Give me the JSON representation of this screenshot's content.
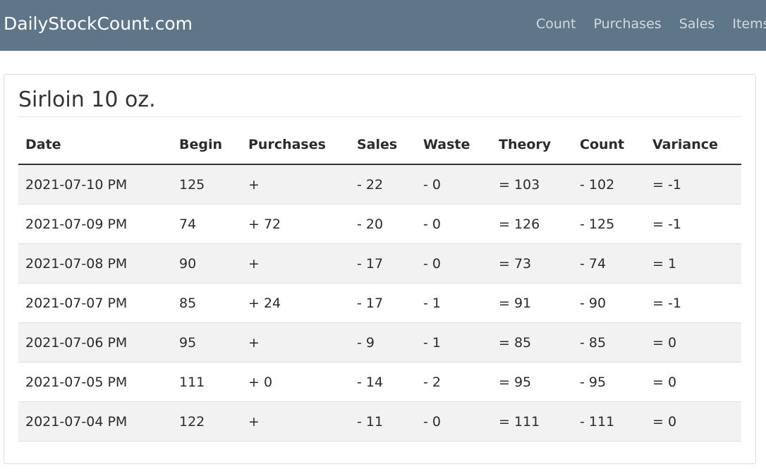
{
  "nav": {
    "brand": "DailyStockCount.com",
    "links": [
      "Count",
      "Purchases",
      "Sales",
      "Items"
    ]
  },
  "item": {
    "title": "Sirloin 10 oz."
  },
  "table": {
    "headers": [
      "Date",
      "Begin",
      "Purchases",
      "Sales",
      "Waste",
      "Theory",
      "Count",
      "Variance"
    ],
    "rows": [
      [
        "2021-07-10 PM",
        "125",
        "+",
        "- 22",
        "- 0",
        "= 103",
        "- 102",
        "= -1"
      ],
      [
        "2021-07-09 PM",
        "74",
        "+ 72",
        "- 20",
        "- 0",
        "= 126",
        "- 125",
        "= -1"
      ],
      [
        "2021-07-08 PM",
        "90",
        "+",
        "- 17",
        "- 0",
        "= 73",
        "- 74",
        "= 1"
      ],
      [
        "2021-07-07 PM",
        "85",
        "+ 24",
        "- 17",
        "- 1",
        "= 91",
        "- 90",
        "= -1"
      ],
      [
        "2021-07-06 PM",
        "95",
        "+",
        "- 9",
        "- 1",
        "= 85",
        "- 85",
        "= 0"
      ],
      [
        "2021-07-05 PM",
        "111",
        "+ 0",
        "- 14",
        "- 2",
        "= 95",
        "- 95",
        "= 0"
      ],
      [
        "2021-07-04 PM",
        "122",
        "+",
        "- 11",
        "- 0",
        "= 111",
        "- 111",
        "= 0"
      ]
    ]
  },
  "colors": {
    "navbar": "#5f7689",
    "stripe": "#f2f2f2"
  }
}
